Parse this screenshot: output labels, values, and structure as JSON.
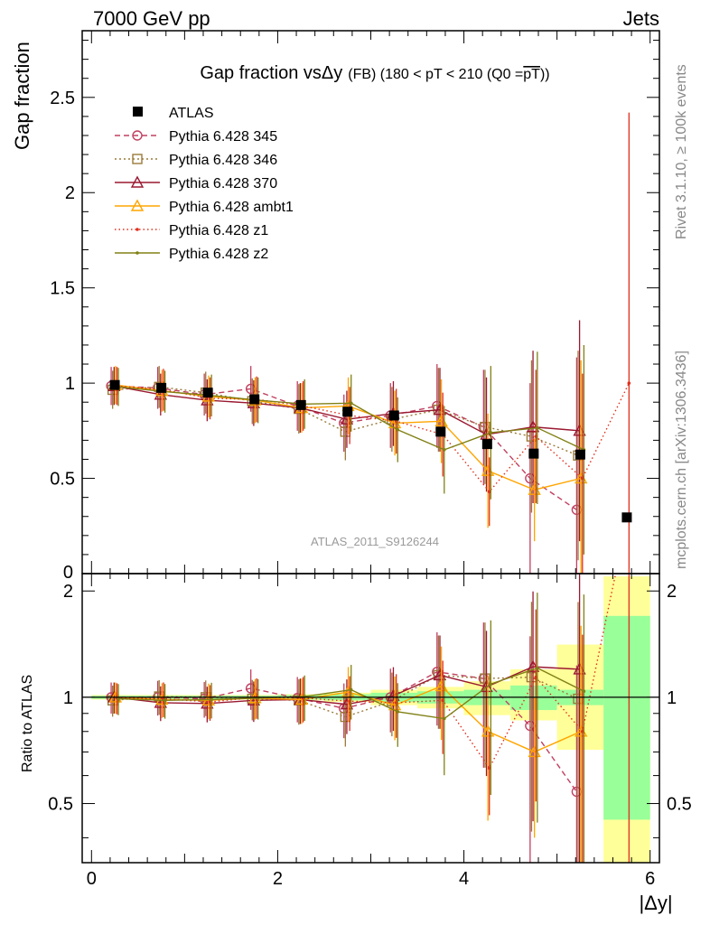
{
  "header": {
    "energy": "7000 GeV pp",
    "process": "Jets"
  },
  "side_notes": {
    "rivet": "Rivet 3.1.10, ≥ 100k events",
    "mcplots": "mcplots.cern.ch [arXiv:1306.3436]"
  },
  "chart_data": [
    {
      "type": "scatter",
      "title_main": "Gap fraction vs",
      "title_dy": "Δy",
      "title_small": "(FB)  (180 < pT < 210 (Q0 =",
      "title_pt": "pT",
      "title_close": "))",
      "ylabel": "Gap fraction",
      "xlabel": "|Δy|",
      "watermark": "ATLAS_2011_S9126244",
      "xlim": [
        -0.1,
        6.1
      ],
      "ylim": [
        0,
        2.85
      ],
      "yticks": [
        0.5,
        1,
        1.5,
        2,
        2.5
      ],
      "ytick_labels": [
        "0.5",
        "1",
        "1.5",
        "2",
        "2.5"
      ],
      "legend": "top-left",
      "x": [
        0.25,
        0.75,
        1.25,
        1.75,
        2.25,
        2.75,
        3.25,
        3.75,
        4.25,
        4.75,
        5.25,
        5.75
      ],
      "data": {
        "name": "ATLAS",
        "color": "#000000",
        "values": [
          0.99,
          0.975,
          0.95,
          0.915,
          0.885,
          0.85,
          0.83,
          0.745,
          0.68,
          0.63,
          0.625,
          0.295
        ],
        "errors": [
          0.01,
          0.01,
          0.01,
          0.01,
          0.01,
          0.01,
          0.015,
          0.015,
          0.02,
          0.02,
          0.025,
          0.02
        ]
      },
      "series": [
        {
          "name": "Pythia 6.428 345",
          "color": "#c04060",
          "dash": "6,4",
          "marker": "circle",
          "values": [
            0.985,
            0.975,
            0.94,
            0.97,
            0.88,
            0.79,
            0.83,
            0.88,
            0.77,
            0.5,
            0.335,
            null
          ],
          "errors": [
            0.1,
            0.11,
            0.11,
            0.12,
            0.13,
            0.15,
            0.17,
            0.22,
            0.3,
            0.5,
            0.8,
            null
          ]
        },
        {
          "name": "Pythia 6.428 346",
          "color": "#9a7a3a",
          "dash": "2,3",
          "marker": "square",
          "values": [
            0.965,
            0.98,
            0.95,
            0.905,
            0.865,
            0.745,
            0.81,
            0.86,
            0.77,
            0.72,
            0.62,
            null
          ],
          "errors": [
            0.1,
            0.11,
            0.11,
            0.12,
            0.13,
            0.15,
            0.17,
            0.22,
            0.3,
            0.4,
            0.55,
            null
          ]
        },
        {
          "name": "Pythia 6.428 370",
          "color": "#9a1830",
          "dash": "",
          "marker": "triangle",
          "values": [
            0.985,
            0.94,
            0.91,
            0.895,
            0.87,
            0.81,
            0.84,
            0.86,
            0.73,
            0.77,
            0.75,
            null
          ],
          "errors": [
            0.1,
            0.11,
            0.11,
            0.12,
            0.13,
            0.15,
            0.17,
            0.22,
            0.3,
            0.4,
            0.58,
            null
          ]
        },
        {
          "name": "Pythia 6.428 ambt1",
          "color": "#ffa500",
          "dash": "",
          "marker": "triangle",
          "values": [
            0.99,
            0.96,
            0.93,
            0.91,
            0.87,
            0.88,
            0.79,
            0.8,
            0.54,
            0.44,
            0.5,
            null
          ],
          "errors": [
            0.1,
            0.11,
            0.11,
            0.12,
            0.13,
            0.15,
            0.17,
            0.22,
            0.3,
            0.27,
            0.62,
            null
          ]
        },
        {
          "name": "Pythia 6.428 z1",
          "color": "#e0301e",
          "dash": "1.5,3",
          "marker": "dot",
          "values": [
            0.985,
            0.965,
            0.92,
            0.915,
            0.88,
            0.83,
            0.8,
            0.73,
            0.43,
            0.72,
            0.5,
            1.0
          ],
          "errors": [
            0.1,
            0.11,
            0.11,
            0.12,
            0.13,
            0.15,
            0.17,
            0.22,
            0.18,
            0.35,
            0.55,
            1.42
          ]
        },
        {
          "name": "Pythia 6.428 z2",
          "color": "#808015",
          "dash": "",
          "marker": "dot",
          "values": [
            0.98,
            0.955,
            0.935,
            0.91,
            0.89,
            0.895,
            0.755,
            0.65,
            0.74,
            0.765,
            0.65,
            null
          ],
          "errors": [
            0.1,
            0.11,
            0.11,
            0.12,
            0.13,
            0.15,
            0.17,
            0.23,
            0.35,
            0.4,
            0.55,
            null
          ]
        }
      ]
    },
    {
      "type": "scatter",
      "ylabel": "Ratio to ATLAS",
      "xlabel": "|Δy|",
      "xlim": [
        -0.1,
        6.1
      ],
      "ylim": [
        0.34,
        2.24
      ],
      "xticks": [
        0,
        2,
        4,
        6
      ],
      "xtick_labels": [
        "0",
        "2",
        "4",
        "6"
      ],
      "yticks": [
        0.5,
        1,
        2
      ],
      "ytick_labels": [
        "0.5",
        "1",
        "2"
      ],
      "log_y": true,
      "band_edges": [
        0,
        0.5,
        1,
        1.5,
        2,
        2.5,
        3,
        3.5,
        4,
        4.5,
        5,
        5.5,
        6
      ],
      "band_inner": [
        [
          0.99,
          1.01
        ],
        [
          0.99,
          1.01
        ],
        [
          0.99,
          1.01
        ],
        [
          0.99,
          1.01
        ],
        [
          0.985,
          1.015
        ],
        [
          0.98,
          1.02
        ],
        [
          0.97,
          1.03
        ],
        [
          0.96,
          1.04
        ],
        [
          0.95,
          1.05
        ],
        [
          0.92,
          1.08
        ],
        [
          0.95,
          1.05
        ],
        [
          0.45,
          1.7
        ]
      ],
      "band_outer": [
        [
          0.985,
          1.015
        ],
        [
          0.985,
          1.015
        ],
        [
          0.985,
          1.015
        ],
        [
          0.985,
          1.015
        ],
        [
          0.98,
          1.02
        ],
        [
          0.97,
          1.03
        ],
        [
          0.95,
          1.05
        ],
        [
          0.93,
          1.07
        ],
        [
          0.89,
          1.11
        ],
        [
          0.86,
          1.2
        ],
        [
          0.71,
          1.41
        ],
        [
          0.34,
          2.2
        ]
      ],
      "inner_color": "#99ff99",
      "outer_color": "#ffff99",
      "series_ratios": [
        [
          1.0,
          1.0,
          0.99,
          1.06,
          0.995,
          0.93,
          1.0,
          1.18,
          1.13,
          0.83,
          0.54,
          null
        ],
        [
          0.98,
          1.005,
          1.0,
          0.99,
          0.98,
          0.88,
          0.975,
          1.155,
          1.13,
          1.14,
          0.99,
          null
        ],
        [
          1.0,
          0.965,
          0.96,
          0.98,
          0.985,
          0.955,
          1.01,
          1.155,
          1.07,
          1.22,
          1.2,
          null
        ],
        [
          1.0,
          0.985,
          0.98,
          0.995,
          0.985,
          1.035,
          0.95,
          1.075,
          0.8,
          0.7,
          0.8,
          null
        ],
        [
          0.995,
          0.99,
          0.97,
          1.0,
          0.995,
          0.975,
          0.965,
          0.98,
          0.63,
          1.14,
          0.8,
          3.39
        ],
        [
          0.99,
          0.98,
          0.985,
          0.995,
          1.005,
          1.05,
          0.91,
          0.87,
          1.09,
          1.21,
          1.04,
          null
        ]
      ]
    }
  ]
}
